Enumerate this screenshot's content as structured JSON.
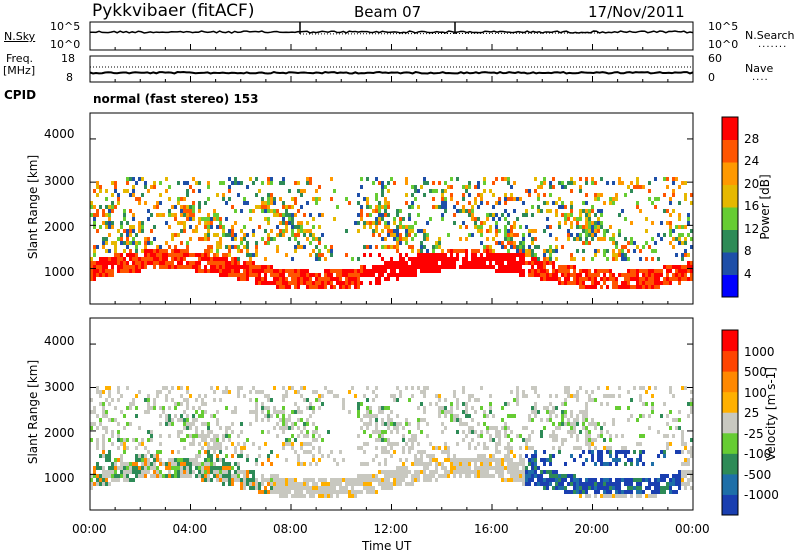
{
  "header": {
    "station": "Pykkvibaer (fitACF)",
    "beam": "Beam 07",
    "date": "17/Nov/2011"
  },
  "strip1": {
    "left_label": "N.Sky",
    "left_ticks": [
      "10^5",
      "10^0"
    ],
    "right_ticks": [
      "10^5",
      "10^0"
    ],
    "right_label": "N.Search"
  },
  "strip2": {
    "left_label_1": "Freq.",
    "left_label_2": "[MHz]",
    "left_ticks": [
      "18",
      "8"
    ],
    "right_ticks": [
      "60",
      "0"
    ],
    "right_label": "Nave"
  },
  "cpid": {
    "label": "CPID",
    "value": "normal (fast stereo) 153"
  },
  "power_panel": {
    "ylabel": "Slant Range [km]",
    "yticks": [
      "4000",
      "3000",
      "2000",
      "1000"
    ],
    "colorbar_label": "Power [dB]",
    "colorbar_ticks": [
      "28",
      "24",
      "20",
      "16",
      "12",
      "8",
      "4"
    ],
    "colors": [
      "#0000ff",
      "#1e4fa8",
      "#2e8b57",
      "#66cc33",
      "#e6b800",
      "#ff9900",
      "#ff5500",
      "#ff0000"
    ]
  },
  "velocity_panel": {
    "ylabel": "Slant Range [km]",
    "yticks": [
      "4000",
      "3000",
      "2000",
      "1000"
    ],
    "colorbar_label": "Velocity [m s-1]",
    "colorbar_ticks": [
      "1000",
      "500",
      "100",
      "25",
      "-25",
      "-100",
      "-500",
      "-1000"
    ],
    "colors": [
      "#1a3fb0",
      "#1e6fa8",
      "#2e8b57",
      "#66cc33",
      "#c8c8c0",
      "#ffb000",
      "#ff8800",
      "#ff4400",
      "#ff0000"
    ]
  },
  "x_axis": {
    "ticks": [
      "00:00",
      "04:00",
      "08:00",
      "12:00",
      "16:00",
      "20:00",
      "00:00"
    ],
    "label": "Time UT"
  },
  "chart_data": {
    "type": "heatmap",
    "title": "Pykkvibaer (fitACF)",
    "subtitle": "Beam 07",
    "date": "17/Nov/2011",
    "xlabel": "Time UT",
    "x_ticks": [
      "00:00",
      "04:00",
      "08:00",
      "12:00",
      "16:00",
      "20:00",
      "00:00"
    ],
    "xlim_hours": [
      0,
      24
    ],
    "panels": [
      {
        "name": "Power",
        "ylabel": "Slant Range [km]",
        "ylim": [
          180,
          4600
        ],
        "colorbar_label": "Power [dB]",
        "colorbar_range": [
          0,
          32
        ],
        "colorbar_ticks": [
          4,
          8,
          12,
          16,
          20,
          24,
          28
        ]
      },
      {
        "name": "Velocity",
        "ylabel": "Slant Range [km]",
        "ylim": [
          180,
          4600
        ],
        "colorbar_label": "Velocity [m s-1]",
        "colorbar_ticks": [
          1000,
          500,
          100,
          25,
          -25,
          -100,
          -500,
          -1000
        ]
      }
    ],
    "cpid": "normal (fast stereo) 153"
  }
}
